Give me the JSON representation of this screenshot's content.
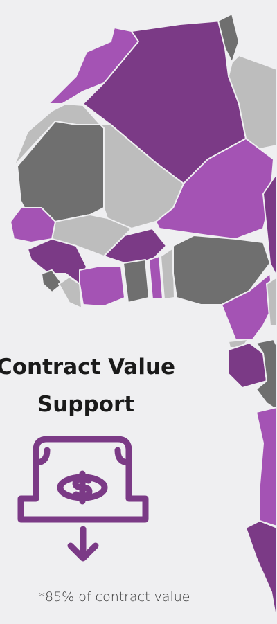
{
  "title_lines": [
    "Contract Value",
    "Support"
  ],
  "note": "*85% of contract value"
}
